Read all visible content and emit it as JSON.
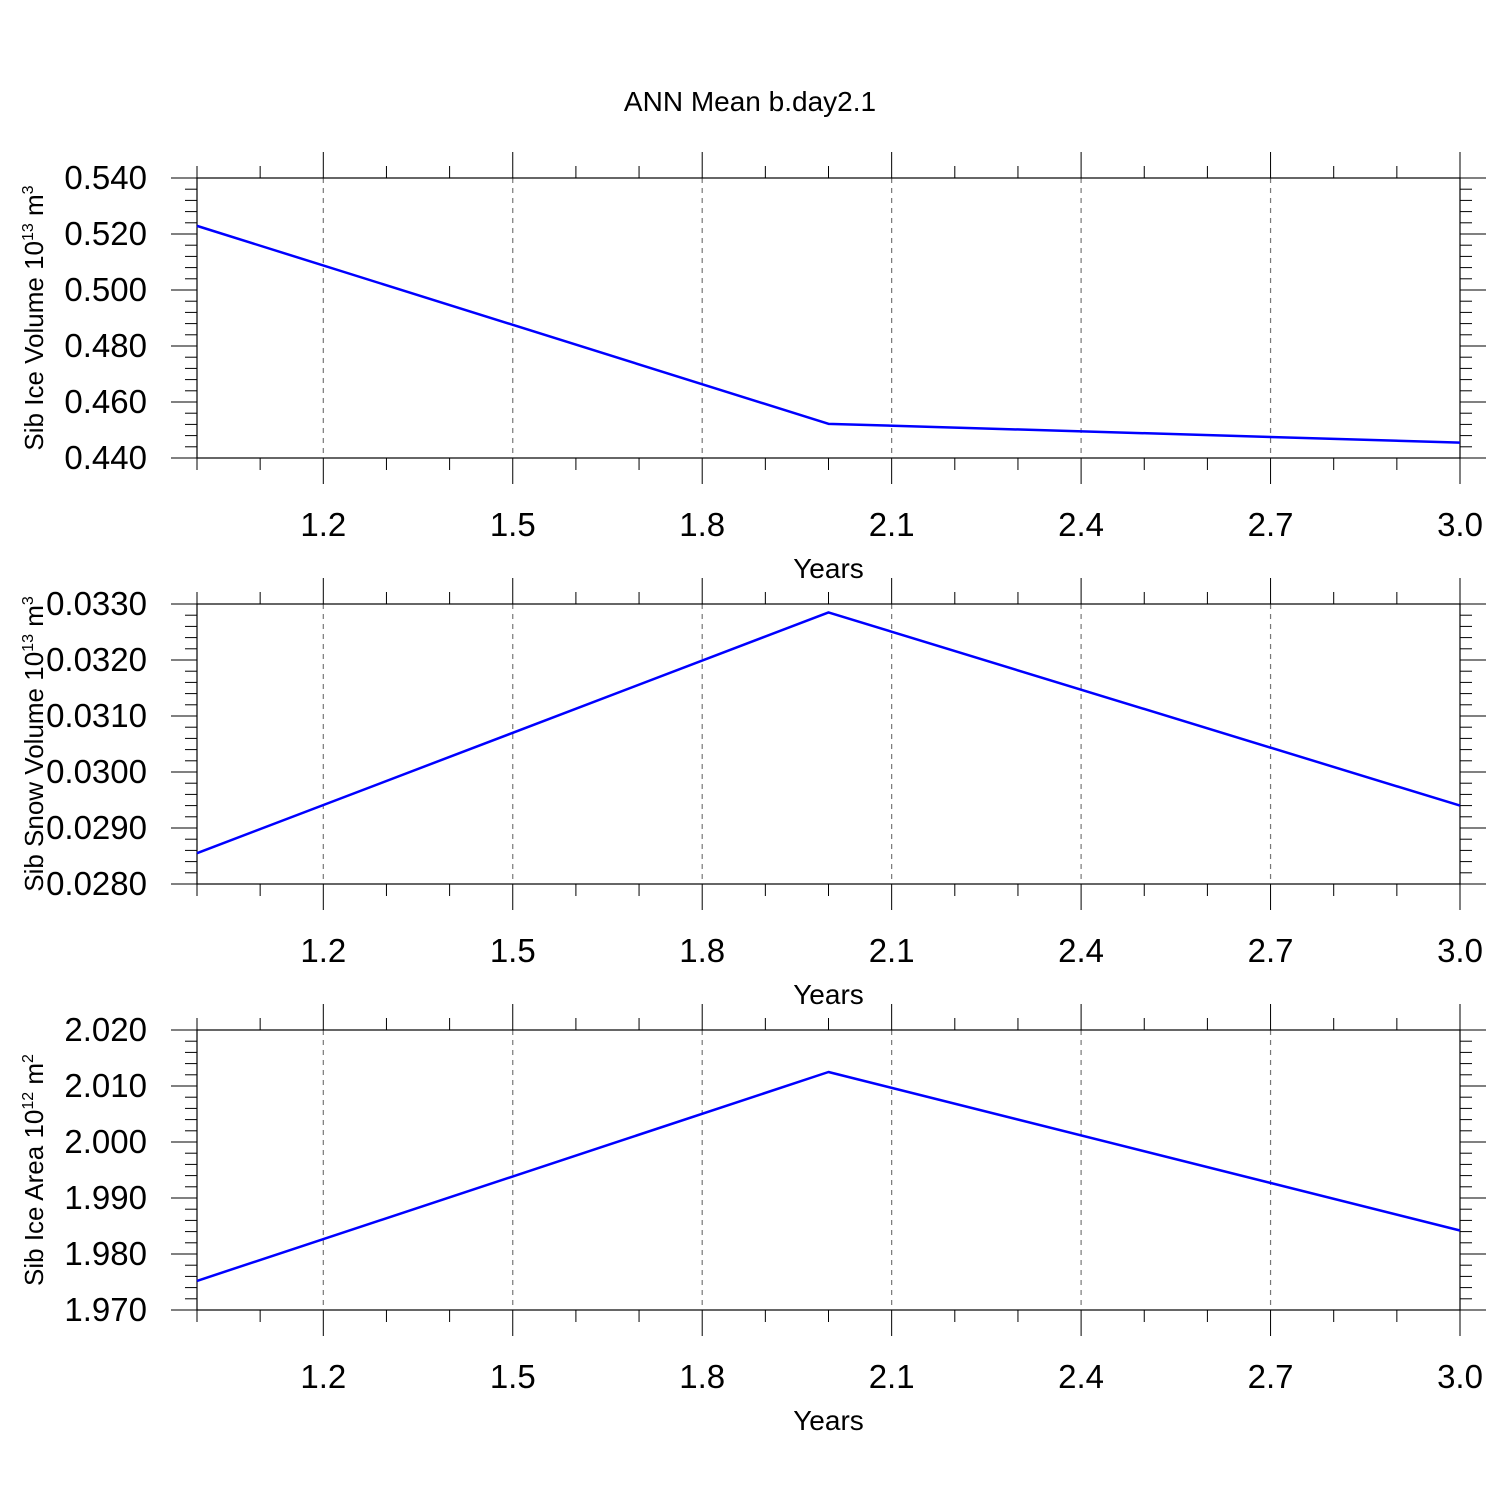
{
  "page": {
    "title": "ANN Mean b.day2.1"
  },
  "chart_data": [
    {
      "type": "line",
      "title": "",
      "xlabel": "Years",
      "ylabel": "Sib Ice Volume 10",
      "ylabel_exp": "13",
      "ylabel_unit": " m",
      "ylabel_unit_exp": "3",
      "xlim": [
        1.0,
        3.0
      ],
      "ylim": [
        0.44,
        0.54
      ],
      "xticks": [
        "1.2",
        "1.5",
        "1.8",
        "2.1",
        "2.4",
        "2.7",
        "3.0"
      ],
      "yticks": [
        "0.440",
        "0.460",
        "0.480",
        "0.500",
        "0.520",
        "0.540"
      ],
      "grid": "vertical-dashed",
      "series": [
        {
          "x": [
            1.0,
            2.0,
            3.0
          ],
          "y": [
            0.5229,
            0.4522,
            0.4455
          ],
          "color": "#0000ff"
        }
      ]
    },
    {
      "type": "line",
      "title": "",
      "xlabel": "Years",
      "ylabel": "Sib Snow Volume 10",
      "ylabel_exp": "13",
      "ylabel_unit": " m",
      "ylabel_unit_exp": "3",
      "xlim": [
        1.0,
        3.0
      ],
      "ylim": [
        0.028,
        0.033
      ],
      "xticks": [
        "1.2",
        "1.5",
        "1.8",
        "2.1",
        "2.4",
        "2.7",
        "3.0"
      ],
      "yticks": [
        "0.0280",
        "0.0290",
        "0.0300",
        "0.0310",
        "0.0320",
        "0.0330"
      ],
      "grid": "vertical-dashed",
      "series": [
        {
          "x": [
            1.0,
            2.0,
            3.0
          ],
          "y": [
            0.02855,
            0.03285,
            0.0294
          ],
          "color": "#0000ff"
        }
      ]
    },
    {
      "type": "line",
      "title": "",
      "xlabel": "Years",
      "ylabel": "Sib Ice Area 10",
      "ylabel_exp": "12",
      "ylabel_unit": " m",
      "ylabel_unit_exp": "2",
      "xlim": [
        1.0,
        3.0
      ],
      "ylim": [
        1.97,
        2.02
      ],
      "xticks": [
        "1.2",
        "1.5",
        "1.8",
        "2.1",
        "2.4",
        "2.7",
        "3.0"
      ],
      "yticks": [
        "1.970",
        "1.980",
        "1.990",
        "2.000",
        "2.010",
        "2.020"
      ],
      "grid": "vertical-dashed",
      "series": [
        {
          "x": [
            1.0,
            2.0,
            3.0
          ],
          "y": [
            1.9752,
            2.0125,
            1.9842
          ],
          "color": "#0000ff"
        }
      ]
    }
  ]
}
